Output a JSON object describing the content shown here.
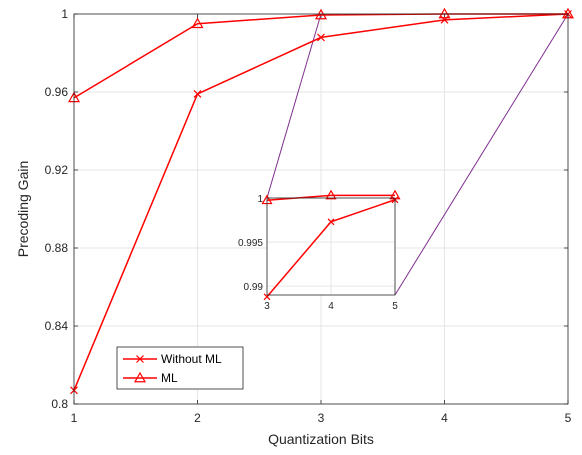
{
  "chart_data": [
    {
      "type": "line",
      "xlabel": "Quantization Bits",
      "ylabel": "Precoding Gain",
      "x": [
        1,
        2,
        3,
        4,
        5
      ],
      "xlim": [
        1,
        5
      ],
      "ylim": [
        0.8,
        1.0
      ],
      "x_ticks": [
        "1",
        "2",
        "3",
        "4",
        "5"
      ],
      "y_ticks": [
        "0.8",
        "0.84",
        "0.88",
        "0.92",
        "0.96",
        "1"
      ],
      "grid": true,
      "legend_position": "bottom-left",
      "series": [
        {
          "name": "Without ML",
          "marker": "x",
          "color": "#ff0000",
          "values": [
            0.807,
            0.959,
            0.988,
            0.997,
            1.0
          ]
        },
        {
          "name": "ML",
          "marker": "triangle",
          "color": "#ff0000",
          "values": [
            0.957,
            0.995,
            0.9995,
            1.0,
            1.0
          ]
        }
      ]
    },
    {
      "type": "line",
      "role": "inset-zoom",
      "x": [
        3,
        4,
        5
      ],
      "xlim": [
        3,
        5
      ],
      "ylim": [
        0.989,
        1.0
      ],
      "x_ticks": [
        "3",
        "4",
        "5"
      ],
      "y_ticks": [
        "0.99",
        "0.995",
        "1"
      ],
      "grid": true,
      "zoom_connector_color": "#7e2f8e",
      "series": [
        {
          "name": "Without ML",
          "values": [
            0.9888,
            0.9973,
            0.9998
          ]
        },
        {
          "name": "ML",
          "values": [
            0.99975,
            1.0003,
            1.0003
          ]
        }
      ]
    }
  ]
}
